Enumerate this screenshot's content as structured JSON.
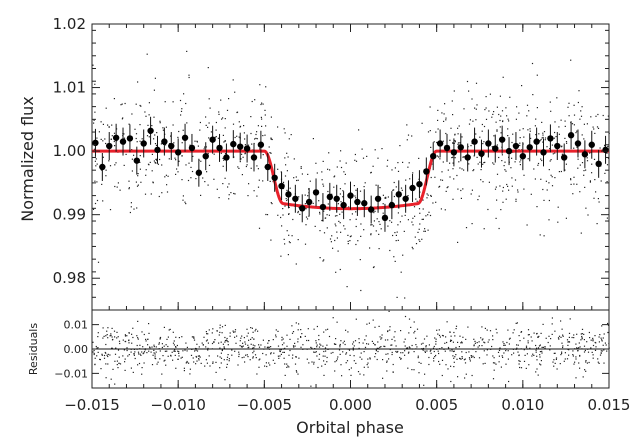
{
  "chart_data": [
    {
      "type": "scatter",
      "panel": "main",
      "xlabel": "",
      "ylabel": "Normalized flux",
      "xlim": [
        -0.015,
        0.015
      ],
      "ylim": [
        0.975,
        1.02
      ],
      "x_ticks": [
        -0.015,
        -0.01,
        -0.005,
        0.0,
        0.005,
        0.01,
        0.015
      ],
      "y_ticks": [
        "0.98",
        "0.99",
        "1.00",
        "1.01",
        "1.02"
      ],
      "raw_points": {
        "description_free": true,
        "x_range": [
          -0.015,
          0.015
        ],
        "count": 1100,
        "out_of_transit_level": 1.0,
        "scatter": 0.005
      },
      "binned_points": {
        "x": [
          -0.0148,
          -0.0144,
          -0.014,
          -0.0136,
          -0.0132,
          -0.0128,
          -0.0124,
          -0.012,
          -0.0116,
          -0.0112,
          -0.0108,
          -0.0104,
          -0.01,
          -0.0096,
          -0.0092,
          -0.0088,
          -0.0084,
          -0.008,
          -0.0076,
          -0.0072,
          -0.0068,
          -0.0064,
          -0.006,
          -0.0056,
          -0.0052,
          -0.0048,
          -0.0044,
          -0.004,
          -0.0036,
          -0.0032,
          -0.0028,
          -0.0024,
          -0.002,
          -0.0016,
          -0.0012,
          -0.0008,
          -0.0004,
          0.0,
          0.0004,
          0.0008,
          0.0012,
          0.0016,
          0.002,
          0.0024,
          0.0028,
          0.0032,
          0.0036,
          0.004,
          0.0044,
          0.0048,
          0.0052,
          0.0056,
          0.006,
          0.0064,
          0.0068,
          0.0072,
          0.0076,
          0.008,
          0.0084,
          0.0088,
          0.0092,
          0.0096,
          0.01,
          0.0104,
          0.0108,
          0.0112,
          0.0116,
          0.012,
          0.0124,
          0.0128,
          0.0132,
          0.0136,
          0.014,
          0.0144,
          0.0148
        ],
        "y": [
          1.0013,
          0.9975,
          1.0008,
          1.0021,
          1.0015,
          1.002,
          0.9985,
          1.0012,
          1.0032,
          1.0002,
          1.0015,
          1.0008,
          0.9998,
          1.0021,
          1.0005,
          0.9966,
          0.9992,
          1.0018,
          1.0005,
          0.999,
          1.0011,
          1.0007,
          1.0004,
          0.999,
          1.001,
          0.9975,
          0.9958,
          0.9945,
          0.9932,
          0.9925,
          0.991,
          0.992,
          0.9935,
          0.9912,
          0.9928,
          0.9925,
          0.9915,
          0.993,
          0.992,
          0.9918,
          0.9908,
          0.9925,
          0.9895,
          0.9915,
          0.9932,
          0.9925,
          0.9942,
          0.9948,
          0.9968,
          0.9992,
          1.0012,
          1.0005,
          0.9998,
          1.0006,
          0.999,
          1.0015,
          0.9996,
          1.0012,
          1.0004,
          1.0018,
          1.0,
          1.0008,
          0.9992,
          1.0006,
          1.0015,
          0.9998,
          1.002,
          1.0008,
          0.999,
          1.0025,
          1.0012,
          0.9995,
          1.001,
          0.998,
          1.0002
        ],
        "yerr": 0.0022
      },
      "model": {
        "name": "",
        "color": "#e8212b",
        "baseline": 1.0,
        "depth": 0.0085,
        "ingress_start": -0.005,
        "ingress_end": -0.0039,
        "egress_start": 0.0039,
        "egress_end": 0.005
      }
    },
    {
      "type": "scatter",
      "panel": "residuals",
      "xlabel": "Orbital phase",
      "ylabel": "Residuals",
      "xlim": [
        -0.015,
        0.015
      ],
      "ylim": [
        -0.016,
        0.016
      ],
      "x_ticks": [
        -0.015,
        -0.01,
        -0.005,
        0.0,
        0.005,
        0.01,
        0.015
      ],
      "x_tick_labels": [
        "−0.015",
        "−0.010",
        "−0.005",
        "0.000",
        "0.005",
        "0.010",
        "0.015"
      ],
      "y_ticks": [
        "−0.01",
        "0.00",
        "0.01"
      ],
      "raw_points": {
        "count": 1100,
        "scatter": 0.005
      },
      "zero_line": 0.0
    }
  ]
}
